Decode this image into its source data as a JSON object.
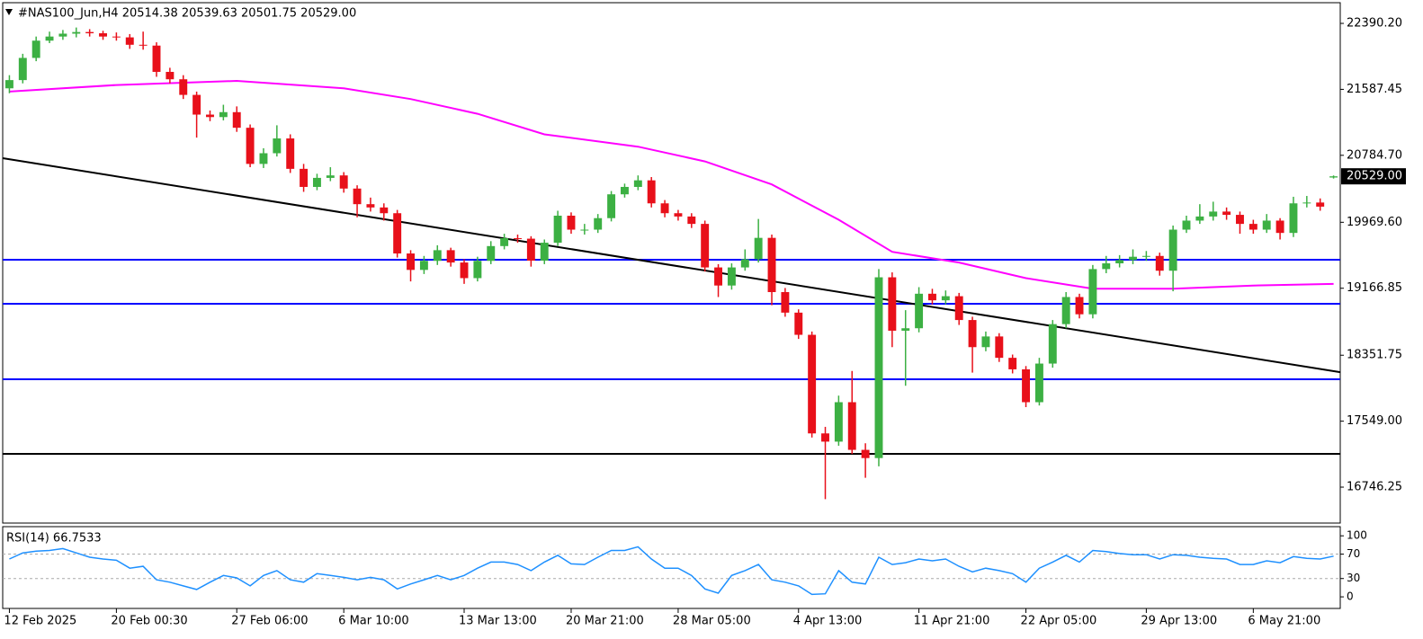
{
  "chart_data": [
    {
      "type": "candlestick",
      "title": "#NAS100_Jun,H4 20514.38 20539.63 20501.75 20529.00",
      "up_color": "#3cb043",
      "down_color": "#e8101a",
      "open": [
        21600,
        21700,
        21970,
        22180,
        22230,
        22265,
        22285,
        22270,
        22230,
        22220,
        22130,
        22120,
        21800,
        21710,
        21520,
        21280,
        21250,
        21310,
        21120,
        20680,
        20810,
        20990,
        20620,
        20400,
        20510,
        20540,
        20380,
        20190,
        20150,
        20080,
        19590,
        19390,
        19500,
        19630,
        19480,
        19290,
        19500,
        19680,
        19776,
        19770,
        19503,
        19721,
        20050,
        19880,
        19880,
        20020,
        20310,
        20400,
        20480,
        20200,
        20080,
        20040,
        19950,
        19420,
        19200,
        19420,
        19520,
        19780,
        19120,
        18870,
        18600,
        17400,
        17300,
        17780,
        17200,
        17100,
        19300,
        18650,
        18680,
        19100,
        19020,
        19070,
        18780,
        18450,
        18580,
        18320,
        18180,
        17780,
        18250,
        18730,
        19060,
        18850,
        19400,
        19470,
        19510,
        19550,
        19560,
        19380,
        19880,
        19990,
        20040,
        20100,
        20060,
        19950,
        19880,
        19990,
        19840,
        20200,
        20210,
        20514.38
      ],
      "high": [
        21760,
        22020,
        22230,
        22290,
        22310,
        22340,
        22320,
        22300,
        22280,
        22260,
        22290,
        22160,
        21850,
        21760,
        21560,
        21330,
        21400,
        21380,
        21160,
        20870,
        21150,
        21040,
        20680,
        20560,
        20640,
        20580,
        20420,
        20270,
        20200,
        20120,
        19630,
        19560,
        19690,
        19660,
        19520,
        19550,
        19740,
        19830,
        19820,
        19800,
        19760,
        20110,
        20090,
        19950,
        20070,
        20350,
        20440,
        20540,
        20520,
        20240,
        20120,
        20080,
        19990,
        19460,
        19470,
        19640,
        20010,
        19820,
        19170,
        18910,
        18640,
        17480,
        17860,
        18160,
        17280,
        19400,
        19360,
        18900,
        19180,
        19160,
        19140,
        19110,
        18820,
        18640,
        18620,
        18360,
        18220,
        18320,
        18780,
        19120,
        19100,
        19450,
        19560,
        19570,
        19640,
        19620,
        19600,
        19930,
        20050,
        20190,
        20220,
        20150,
        20100,
        20000,
        20070,
        20020,
        20280,
        20290,
        20260,
        20539.63
      ],
      "low": [
        21540,
        21660,
        21930,
        22150,
        22190,
        22220,
        22230,
        22190,
        22180,
        22080,
        22070,
        21740,
        21660,
        21470,
        21000,
        21200,
        21210,
        21070,
        20640,
        20630,
        20770,
        20570,
        20340,
        20360,
        20470,
        20330,
        20030,
        20100,
        19990,
        19540,
        19250,
        19340,
        19450,
        19430,
        19220,
        19250,
        19460,
        19640,
        19720,
        19430,
        19460,
        19680,
        19830,
        19820,
        19840,
        19980,
        20270,
        20360,
        20150,
        20030,
        19990,
        19900,
        19370,
        19060,
        19150,
        19380,
        19480,
        18960,
        18820,
        18550,
        17350,
        16600,
        17250,
        17150,
        16860,
        17000,
        18450,
        17980,
        18630,
        18970,
        18970,
        18720,
        18140,
        18400,
        18270,
        18130,
        17720,
        17740,
        18200,
        18680,
        18800,
        18800,
        19350,
        19420,
        19460,
        19500,
        19320,
        19130,
        19840,
        19950,
        19990,
        20000,
        19830,
        19830,
        19840,
        19760,
        19790,
        20150,
        20110,
        20501.75
      ],
      "close": [
        21700,
        21970,
        22180,
        22230,
        22265,
        22285,
        22270,
        22230,
        22220,
        22130,
        22120,
        21800,
        21710,
        21520,
        21280,
        21250,
        21310,
        21120,
        20680,
        20810,
        20990,
        20620,
        20400,
        20510,
        20540,
        20380,
        20190,
        20150,
        20080,
        19590,
        19390,
        19500,
        19630,
        19480,
        19290,
        19500,
        19680,
        19776,
        19770,
        19503,
        19721,
        20050,
        19880,
        19880,
        20020,
        20310,
        20400,
        20480,
        20200,
        20080,
        20040,
        19950,
        19420,
        19200,
        19420,
        19520,
        19780,
        19120,
        18870,
        18600,
        17400,
        17300,
        17780,
        17200,
        17100,
        19300,
        18650,
        18680,
        19100,
        19020,
        19070,
        18780,
        18450,
        18580,
        18320,
        18180,
        17780,
        18250,
        18730,
        19060,
        18850,
        19400,
        19470,
        19510,
        19550,
        19560,
        19380,
        19880,
        19990,
        20040,
        20100,
        20060,
        19950,
        19880,
        19990,
        19840,
        20200,
        20210,
        20160,
        20529
      ],
      "xlim": [
        -0.5,
        99.5
      ],
      "xticks": [
        {
          "value": 0,
          "label": "12 Feb 2025"
        },
        {
          "value": 8,
          "label": "20 Feb 00:30"
        },
        {
          "value": 17,
          "label": "27 Feb 06:00"
        },
        {
          "value": 25,
          "label": "6 Mar 10:00"
        },
        {
          "value": 34,
          "label": "13 Mar 13:00"
        },
        {
          "value": 42,
          "label": "20 Mar 21:00"
        },
        {
          "value": 50,
          "label": "28 Mar 05:00"
        },
        {
          "value": 59,
          "label": "4 Apr 13:00"
        },
        {
          "value": 68,
          "label": "11 Apr 21:00"
        },
        {
          "value": 76,
          "label": "22 Apr 05:00"
        },
        {
          "value": 85,
          "label": "29 Apr 13:00"
        },
        {
          "value": 93,
          "label": "6 May 21:00"
        }
      ],
      "ylim": [
        16309,
        22642
      ],
      "yticks": [
        {
          "value": 22390.2,
          "label": "22390.20"
        },
        {
          "value": 21587.45,
          "label": "21587.45"
        },
        {
          "value": 20784.7,
          "label": "20784.70"
        },
        {
          "value": 19969.6,
          "label": "19969.60"
        },
        {
          "value": 19166.85,
          "label": "19166.85"
        },
        {
          "value": 18351.75,
          "label": "18351.75"
        },
        {
          "value": 17549,
          "label": "17549.00"
        },
        {
          "value": 16746.25,
          "label": "16746.25"
        }
      ],
      "last_price": {
        "value": 20529,
        "label": "20529.00"
      },
      "moving_average": {
        "color": "#ff00ff",
        "x": [
          0,
          8,
          17,
          25,
          30,
          35,
          40,
          47,
          52,
          57,
          62,
          66,
          71,
          76,
          81,
          87,
          93,
          99
        ],
        "values": [
          21560,
          21640,
          21690,
          21600,
          21470,
          21290,
          21040,
          20890,
          20710,
          20430,
          20000,
          19610,
          19480,
          19290,
          19160,
          19160,
          19200,
          19220
        ]
      },
      "trendline": {
        "color": "#000000",
        "x": [
          -0.5,
          99.5
        ],
        "values": [
          20750,
          18146
        ]
      },
      "hlines": [
        {
          "value": 19514,
          "color": "#0000ff"
        },
        {
          "value": 18978,
          "color": "#0000ff"
        },
        {
          "value": 18059,
          "color": "#0000ff"
        },
        {
          "value": 17151,
          "color": "#000000"
        }
      ]
    },
    {
      "type": "line",
      "title": "RSI(14) 66.7533",
      "color": "#1e90ff",
      "values": [
        62,
        72,
        75,
        76,
        79,
        72,
        65,
        62,
        60,
        47,
        50,
        28,
        24,
        18,
        12,
        24,
        35,
        31,
        18,
        35,
        43,
        28,
        24,
        38,
        35,
        32,
        28,
        32,
        28,
        13,
        21,
        28,
        35,
        28,
        35,
        47,
        57,
        57,
        53,
        43,
        57,
        68,
        54,
        53,
        65,
        76,
        76,
        82,
        62,
        47,
        47,
        35,
        13,
        6,
        35,
        43,
        53,
        28,
        24,
        18,
        4,
        5,
        43,
        24,
        21,
        65,
        53,
        56,
        62,
        59,
        62,
        50,
        41,
        47,
        43,
        38,
        24,
        47,
        57,
        68,
        57,
        76,
        74,
        71,
        69,
        69,
        62,
        69,
        68,
        65,
        63,
        62,
        53,
        53,
        59,
        56,
        66,
        63,
        62,
        66.7533
      ],
      "ylim": [
        -19,
        115
      ],
      "yticks": [
        0,
        30,
        70,
        100
      ],
      "levels": [
        30,
        70
      ]
    }
  ]
}
